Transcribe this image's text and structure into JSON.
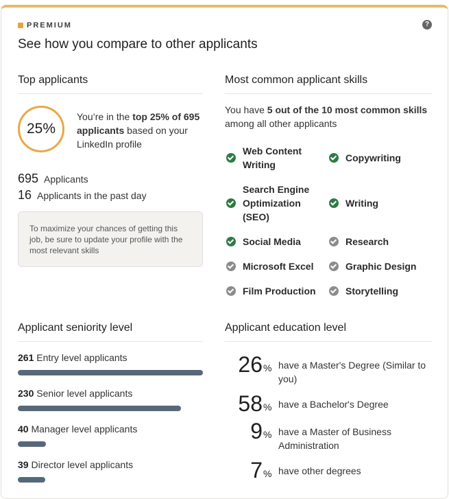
{
  "header": {
    "badge": "PREMIUM",
    "help_icon": "question-circle-icon",
    "title": "See how you compare to other applicants"
  },
  "top_applicants": {
    "title": "Top applicants",
    "percent_value": "25",
    "percent_sign": "%",
    "text_prefix": "You’re in the ",
    "text_bold": "top 25% of 695 applicants",
    "text_suffix": " based on your LinkedIn profile",
    "stats": [
      {
        "value": "695",
        "label": "Applicants"
      },
      {
        "value": "16",
        "label": "Applicants in the past day"
      }
    ],
    "tip": "To maximize your chances of getting this job, be sure to update your profile with the most relevant skills"
  },
  "skills": {
    "title": "Most common applicant skills",
    "intro_prefix": "You have ",
    "intro_bold": "5 out of the 10 most common skills",
    "intro_suffix": " among all other applicants",
    "items": [
      {
        "label": "Web Content Writing",
        "has": true
      },
      {
        "label": "Copywriting",
        "has": true
      },
      {
        "label": "Search Engine Optimization (SEO)",
        "has": true
      },
      {
        "label": "Writing",
        "has": true
      },
      {
        "label": "Social Media",
        "has": true
      },
      {
        "label": "Research",
        "has": false
      },
      {
        "label": "Microsoft Excel",
        "has": false
      },
      {
        "label": "Graphic Design",
        "has": false
      },
      {
        "label": "Film Production",
        "has": false
      },
      {
        "label": "Storytelling",
        "has": false
      }
    ]
  },
  "seniority": {
    "title": "Applicant seniority level",
    "items": [
      {
        "count": "261",
        "label": "Entry level applicants",
        "value": 261
      },
      {
        "count": "230",
        "label": "Senior level applicants",
        "value": 230
      },
      {
        "count": "40",
        "label": "Manager level applicants",
        "value": 40
      },
      {
        "count": "39",
        "label": "Director level applicants",
        "value": 39
      }
    ]
  },
  "education": {
    "title": "Applicant education level",
    "items": [
      {
        "value": "26",
        "pct": "%",
        "label": "have a Master's Degree (Similar to you)"
      },
      {
        "value": "58",
        "pct": "%",
        "label": "have a Bachelor's Degree"
      },
      {
        "value": "9",
        "pct": "%",
        "label": "have a Master of Business Administration"
      },
      {
        "value": "7",
        "pct": "%",
        "label": "have other degrees"
      }
    ]
  },
  "colors": {
    "accent_top": "#e7b96a",
    "ring": "#e9a847",
    "check_on": "#2f7b45",
    "check_off": "#8c8c8c",
    "bar": "#56687a"
  }
}
